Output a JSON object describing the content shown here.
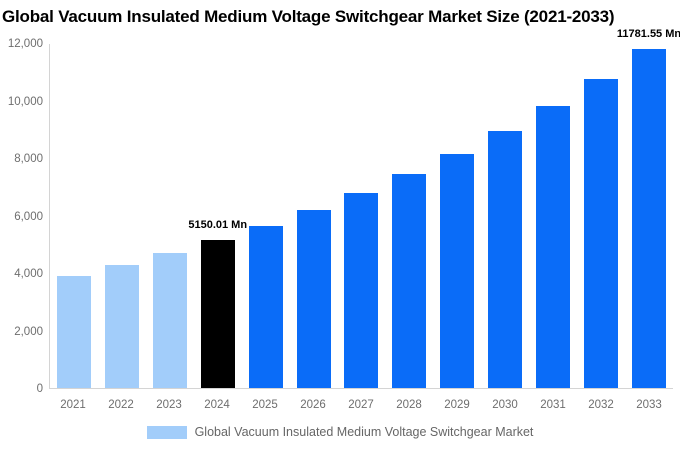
{
  "title": "Global Vacuum Insulated Medium Voltage Switchgear Market Size (2021-2033)",
  "chart_data": {
    "type": "bar",
    "title": "Global Vacuum Insulated Medium Voltage Switchgear Market Size (2021-2033)",
    "categories": [
      "2021",
      "2022",
      "2023",
      "2024",
      "2025",
      "2026",
      "2027",
      "2028",
      "2029",
      "2030",
      "2031",
      "2032",
      "2033"
    ],
    "values": [
      3908,
      4285,
      4698,
      5150.01,
      5646,
      6190,
      6786,
      7440,
      8156,
      8941,
      9802,
      10746,
      11781.55
    ],
    "bar_colors": [
      "#a2cdfa",
      "#a2cdfa",
      "#a2cdfa",
      "#000000",
      "#0a6cf8",
      "#0a6cf8",
      "#0a6cf8",
      "#0a6cf8",
      "#0a6cf8",
      "#0a6cf8",
      "#0a6cf8",
      "#0a6cf8",
      "#0a6cf8"
    ],
    "ylim": [
      0,
      12000
    ],
    "ytick_labels": [
      "12,000",
      "10,000",
      "8,000",
      "6,000",
      "4,000",
      "2,000",
      "0"
    ],
    "xlabel": "",
    "ylabel": "",
    "grid": false,
    "legend_position": "bottom",
    "data_labels": [
      {
        "index": 3,
        "text": "5150.01 Mn"
      },
      {
        "index": 12,
        "text": "11781.55 Mn"
      }
    ],
    "legend": {
      "label": "Global Vacuum Insulated Medium Voltage Switchgear Market",
      "swatch_color": "#a2cdfa"
    }
  },
  "colors": {
    "series_historical": "#a2cdfa",
    "series_base_year": "#000000",
    "series_forecast": "#0a6cf8",
    "axis_line": "#d4d4d4",
    "tick_text": "#6e6e6e",
    "legend_text": "#666666",
    "title_text": "#000000",
    "background": "#ffffff"
  }
}
